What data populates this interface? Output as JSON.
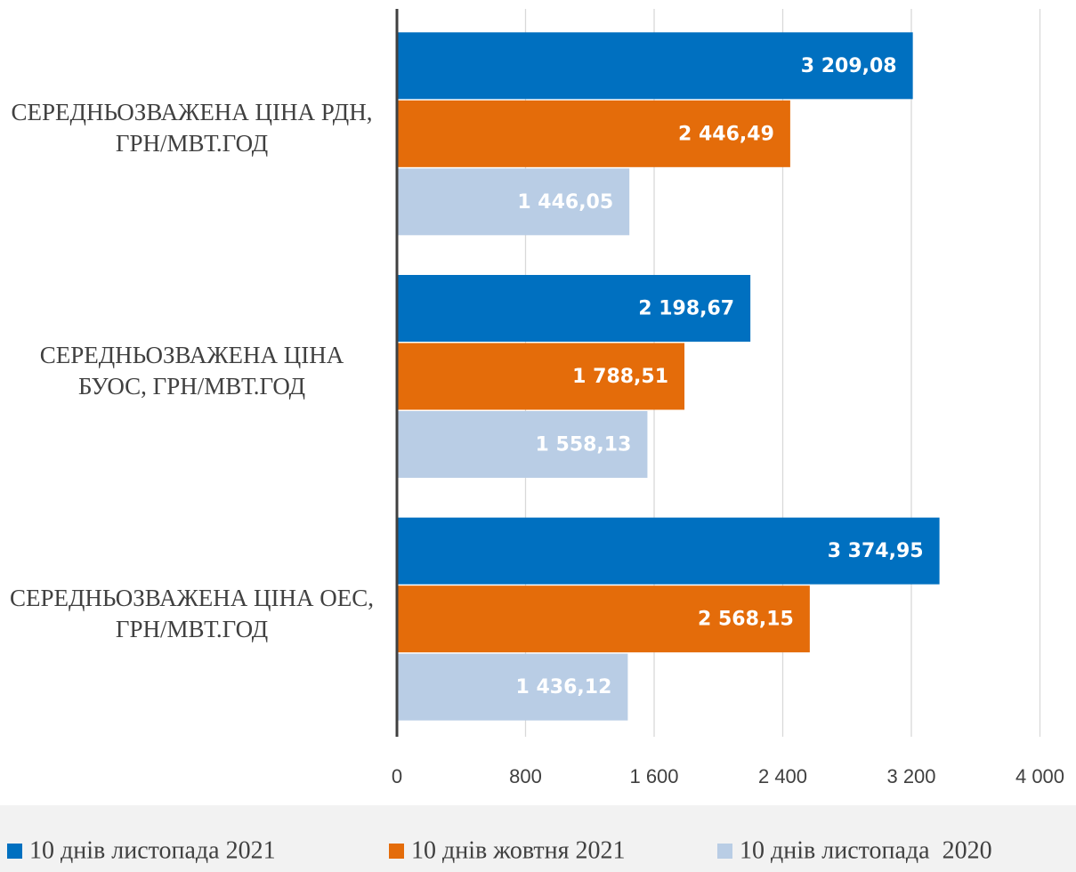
{
  "chart_data": {
    "type": "hbar",
    "categories": [
      "СЕРЕДНЬОЗВАЖЕНА ЦІНА РДН, ГРН/МВТ.ГОД",
      "СЕРЕДНЬОЗВАЖЕНА ЦІНА БУОС, ГРН/МВТ.ГОД",
      "СЕРЕДНЬОЗВАЖЕНА ЦІНА ОЕС, ГРН/МВТ.ГОД"
    ],
    "series": [
      {
        "name": "10 днів листопада 2021",
        "color": "#0070c0",
        "values": [
          3209.08,
          2198.67,
          3374.95
        ],
        "value_labels": [
          "3 209,08",
          "2 198,67",
          "3 374,95"
        ]
      },
      {
        "name": "10 днів жовтня 2021",
        "color": "#e46c0a",
        "values": [
          2446.49,
          1788.51,
          2568.15
        ],
        "value_labels": [
          "2 446,49",
          "1 788,51",
          "2 568,15"
        ]
      },
      {
        "name": "10 днів листопада  2020",
        "color": "#b9cde5",
        "values": [
          1446.05,
          1558.13,
          1436.12
        ],
        "value_labels": [
          "1 446,05",
          "1 558,13",
          "1 436,12"
        ]
      }
    ],
    "xlim": [
      0,
      4000
    ],
    "xticks": [
      0,
      800,
      {
        "value": 1600,
        "label": "1 600"
      },
      {
        "value": 2400,
        "label": "2 400"
      },
      {
        "value": 3200,
        "label": "3 200"
      },
      {
        "value": 4000,
        "label": "4 000"
      }
    ],
    "grid": true,
    "legend": "bottom"
  }
}
